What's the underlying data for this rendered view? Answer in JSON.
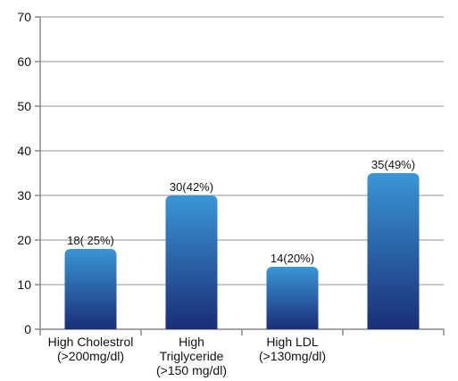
{
  "chart_data": {
    "type": "bar",
    "title": "",
    "xlabel": "",
    "ylabel": "",
    "ylim": [
      0,
      70
    ],
    "yticks": [
      0,
      10,
      20,
      30,
      40,
      50,
      60,
      70
    ],
    "grid": true,
    "categories": [
      [
        "High Cholestrol",
        "(>200mg/dl)"
      ],
      [
        "High",
        "Triglyceride",
        "(>150 mg/dl)"
      ],
      [
        "High LDL",
        "(>130mg/dl)"
      ],
      [
        ""
      ]
    ],
    "values": [
      18,
      30,
      14,
      35
    ],
    "data_labels": [
      "18( 25%)",
      "30(42%)",
      "14(20%)",
      "35(49%)"
    ],
    "colors": {
      "bar_top": "#3a96d6",
      "bar_bottom": "#1a2e78",
      "grid": "#c8c8c8",
      "axis": "#888888"
    }
  }
}
